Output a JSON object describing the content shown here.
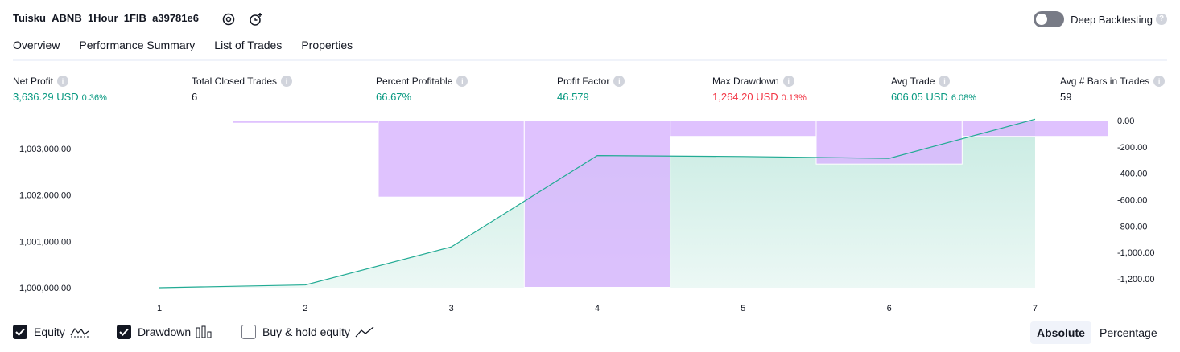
{
  "header": {
    "strategy_title": "Tuisku_ABNB_1Hour_1FIB_a39781e6",
    "deep_backtesting_label": "Deep Backtesting",
    "deep_backtesting_enabled": false,
    "help_glyph": "?"
  },
  "tabs": [
    {
      "label": "Overview",
      "active": true
    },
    {
      "label": "Performance Summary",
      "active": false
    },
    {
      "label": "List of Trades",
      "active": false
    },
    {
      "label": "Properties",
      "active": false
    }
  ],
  "metrics": {
    "net_profit": {
      "label": "Net Profit",
      "value": "3,636.29 USD",
      "pct": "0.36%"
    },
    "total_closed_trades": {
      "label": "Total Closed Trades",
      "value": "6"
    },
    "percent_profitable": {
      "label": "Percent Profitable",
      "value": "66.67%"
    },
    "profit_factor": {
      "label": "Profit Factor",
      "value": "46.579"
    },
    "max_drawdown": {
      "label": "Max Drawdown",
      "value": "1,264.20 USD",
      "pct": "0.13%"
    },
    "avg_trade": {
      "label": "Avg Trade",
      "value": "606.05 USD",
      "pct": "6.08%"
    },
    "avg_bars": {
      "label": "Avg # Bars in Trades",
      "value": "59"
    }
  },
  "info_glyph": "i",
  "colors": {
    "positive": "#089981",
    "negative": "#f23645",
    "equity_line": "#22ab94",
    "equity_fill": "#c8ebe2",
    "drawdown_fill": "#d8b4fe",
    "text": "#131722"
  },
  "chart_data": {
    "type": "area",
    "x": [
      1,
      2,
      3,
      4,
      5,
      6,
      7
    ],
    "left_axis": {
      "ticks": [
        "1,000,000.00",
        "1,001,000.00",
        "1,002,000.00",
        "1,003,000.00"
      ],
      "tick_values": [
        1000000,
        1001000,
        1002000,
        1003000
      ]
    },
    "right_axis": {
      "ticks": [
        "0.00",
        "-200.00",
        "-400.00",
        "-600.00",
        "-800.00",
        "-1,000.00",
        "-1,200.00"
      ],
      "tick_values": [
        0,
        -200,
        -400,
        -600,
        -800,
        -1000,
        -1200
      ]
    },
    "series": [
      {
        "name": "Equity",
        "axis": "left",
        "values": [
          1000000,
          1000060,
          1000880,
          1002850,
          1002830,
          1002790,
          1003636
        ]
      },
      {
        "name": "Drawdown",
        "axis": "right",
        "type": "bar",
        "values": [
          -8,
          -20,
          -580,
          -1264,
          -120,
          -330,
          -120
        ]
      }
    ],
    "grid": false
  },
  "footer": {
    "legend": [
      {
        "label": "Equity",
        "checked": true,
        "icon": "equity-line-icon"
      },
      {
        "label": "Drawdown",
        "checked": true,
        "icon": "drawdown-bars-icon"
      },
      {
        "label": "Buy & hold equity",
        "checked": false,
        "icon": "buy-hold-line-icon"
      }
    ],
    "modes": [
      {
        "label": "Absolute",
        "active": true
      },
      {
        "label": "Percentage",
        "active": false
      }
    ]
  }
}
